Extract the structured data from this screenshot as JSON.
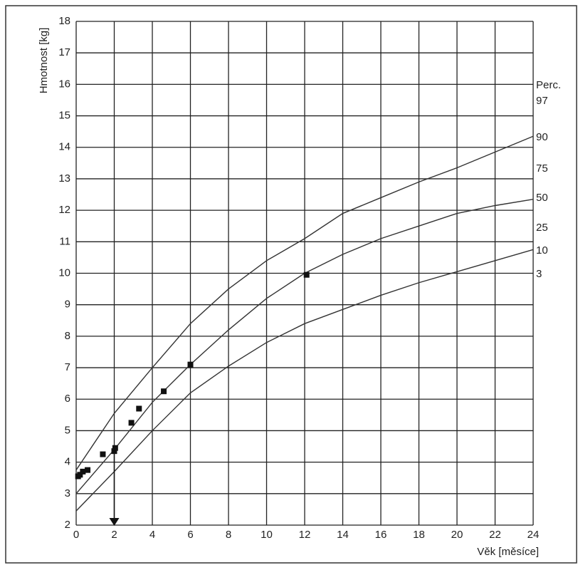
{
  "chart_data": {
    "type": "line",
    "ylabel": "Hmotnost [kg]",
    "xlabel": "Věk [měsíce]",
    "xlim": [
      0,
      24
    ],
    "xticks": [
      0,
      2,
      4,
      6,
      8,
      10,
      12,
      14,
      16,
      18,
      20,
      22,
      24
    ],
    "ylim": [
      2,
      18
    ],
    "yticks": [
      2,
      3,
      4,
      5,
      6,
      7,
      8,
      9,
      10,
      11,
      12,
      13,
      14,
      15,
      16,
      17,
      18
    ],
    "grid": true,
    "x": [
      0,
      2,
      4,
      6,
      8,
      10,
      12,
      14,
      16,
      18,
      20,
      22,
      24
    ],
    "series": [
      {
        "color": "#333333",
        "values": [
          3.75,
          5.55,
          7.0,
          8.4,
          9.5,
          10.4,
          11.1,
          11.9,
          12.4,
          12.9,
          13.35,
          13.85,
          14.35
        ]
      },
      {
        "color": "#333333",
        "values": [
          3.0,
          4.4,
          5.9,
          7.1,
          8.2,
          9.2,
          10.0,
          10.6,
          11.1,
          11.5,
          11.9,
          12.15,
          12.35
        ]
      },
      {
        "color": "#333333",
        "values": [
          2.45,
          3.7,
          5.0,
          6.2,
          7.05,
          7.8,
          8.4,
          8.85,
          9.3,
          9.7,
          10.05,
          10.4,
          10.75
        ]
      }
    ],
    "points": {
      "color": "#111111",
      "x": [
        0.1,
        0.2,
        0.35,
        0.6,
        1.4,
        2.0,
        2.05,
        2.9,
        3.3,
        4.6,
        6.0,
        12.1
      ],
      "y": [
        3.55,
        3.6,
        3.7,
        3.75,
        4.25,
        4.35,
        4.45,
        5.25,
        5.7,
        6.25,
        7.1,
        9.95
      ]
    },
    "marker_x": 2,
    "right_labels": [
      "Perc.",
      "97",
      "90",
      "75",
      "50",
      "25",
      "10",
      "3"
    ]
  }
}
